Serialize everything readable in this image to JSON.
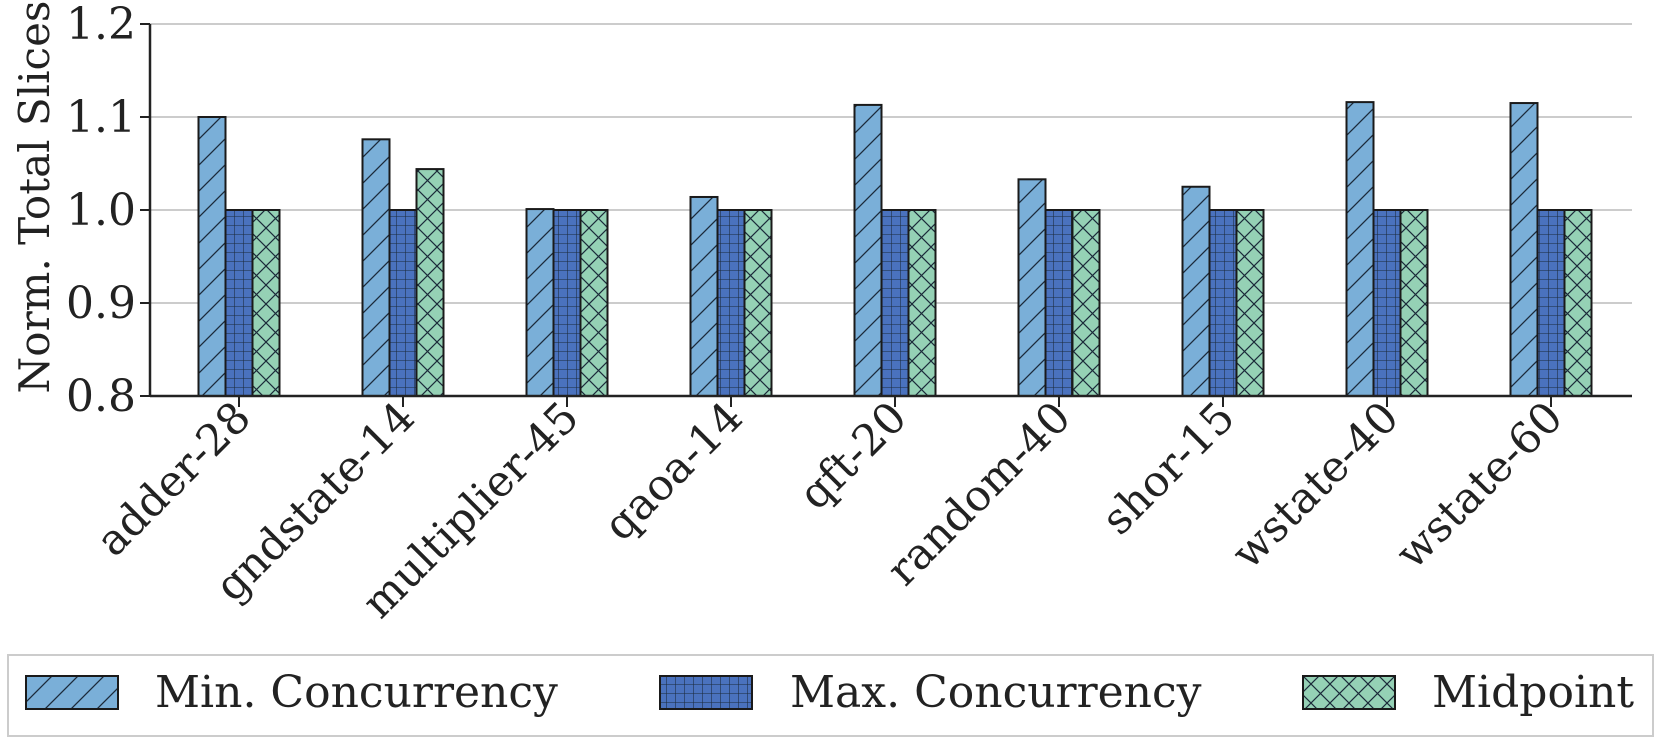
{
  "chart_data": {
    "type": "bar",
    "title": "",
    "xlabel": "",
    "ylabel": "Norm. Total Slices",
    "ylim": [
      0.8,
      1.2
    ],
    "yticks": [
      "0.8",
      "0.9",
      "1.0",
      "1.1",
      "1.2"
    ],
    "grid": "horizontal",
    "legend_position": "bottom",
    "categories": [
      "adder-28",
      "gndstate-14",
      "multiplier-45",
      "qaoa-14",
      "qft-20",
      "random-40",
      "shor-15",
      "wstate-40",
      "wstate-60"
    ],
    "series": [
      {
        "name": "Min. Concurrency",
        "color": "#7aafd8",
        "hatch": "diagonal",
        "values": [
          1.1,
          1.076,
          1.001,
          1.014,
          1.113,
          1.033,
          1.025,
          1.116,
          1.115
        ]
      },
      {
        "name": "Max. Concurrency",
        "color": "#4a72be",
        "hatch": "grid",
        "values": [
          1.0,
          1.0,
          1.0,
          1.0,
          1.0,
          1.0,
          1.0,
          1.0,
          1.0
        ]
      },
      {
        "name": "Midpoint",
        "color": "#95d1b5",
        "hatch": "crosshatch",
        "values": [
          1.0,
          1.044,
          1.0,
          1.0,
          1.0,
          1.0,
          1.0,
          1.0,
          1.0
        ]
      }
    ]
  }
}
